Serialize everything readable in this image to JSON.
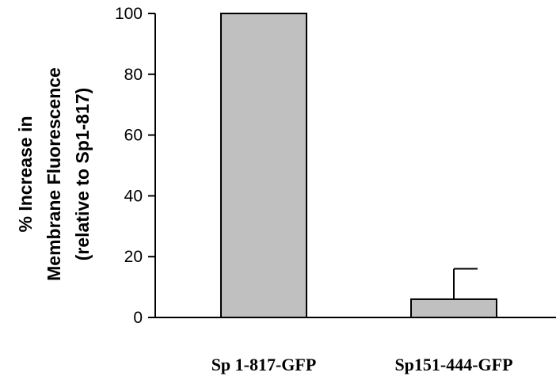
{
  "chart_data": {
    "type": "bar",
    "categories": [
      "Sp 1-817-GFP",
      "Sp151-444-GFP"
    ],
    "values": [
      100,
      6
    ],
    "error_bars_upper": [
      0,
      10
    ],
    "ylabel": [
      "% Increase in",
      "Membrane Fluorescence",
      "(relative to Sp1-817)"
    ],
    "xlabel": "",
    "ylim": [
      0,
      100
    ],
    "yticks": [
      0,
      20,
      40,
      60,
      80,
      100
    ],
    "grid": false,
    "legend": "none",
    "bar_color": "#c0c0c0",
    "edge_color": "#000000"
  }
}
